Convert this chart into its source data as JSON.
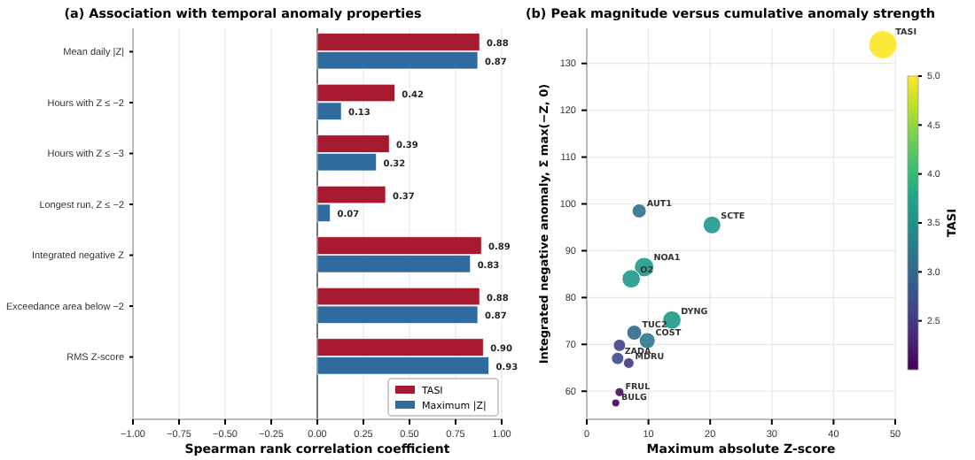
{
  "chart_data": [
    {
      "type": "bar",
      "orientation": "horizontal",
      "title": "(a) Association with temporal anomaly properties",
      "xlabel": "Spearman rank correlation coefficient",
      "categories": [
        "Mean daily |Z|",
        "Hours with Z ≤ −2",
        "Hours with Z ≤ −3",
        "Longest run, Z ≤ −2",
        "Integrated negative Z",
        "Exceedance area below −2",
        "RMS Z-score"
      ],
      "series": [
        {
          "name": "TASI",
          "color": "#a6192e",
          "values": [
            0.88,
            0.42,
            0.39,
            0.37,
            0.89,
            0.88,
            0.9
          ],
          "value_labels": [
            "0.88",
            "0.42",
            "0.39",
            "0.37",
            "0.89",
            "0.88",
            "0.90"
          ]
        },
        {
          "name": "Maximum |Z|",
          "color": "#2f6b9e",
          "values": [
            0.87,
            0.13,
            0.32,
            0.07,
            0.83,
            0.87,
            0.93
          ],
          "value_labels": [
            "0.87",
            "0.13",
            "0.32",
            "0.07",
            "0.83",
            "0.87",
            "0.93"
          ]
        }
      ],
      "xlim": [
        -1,
        1
      ],
      "xticks": [
        {
          "value": -1,
          "label": "−1.00"
        },
        {
          "value": -0.75,
          "label": "−0.75"
        },
        {
          "value": -0.5,
          "label": "−0.50"
        },
        {
          "value": -0.25,
          "label": "−0.25"
        },
        {
          "value": 0,
          "label": "0.00"
        },
        {
          "value": 0.25,
          "label": "0.25"
        },
        {
          "value": 0.5,
          "label": "0.50"
        },
        {
          "value": 0.75,
          "label": "0.75"
        },
        {
          "value": 1,
          "label": "1.00"
        }
      ],
      "grid": "x",
      "legend": "bottom right",
      "ref_lines": [
        {
          "axis": "x",
          "value": 0,
          "color": "#555555"
        }
      ]
    },
    {
      "type": "bubble",
      "title": "(b) Peak magnitude versus cumulative anomaly strength",
      "xlabel": "Maximum absolute Z-score",
      "ylabel": "Integrated negative anomaly, Σ max(−Z, 0)",
      "clabel": "TASI",
      "x": [
        48,
        8.5,
        20.3,
        9.3,
        7.2,
        13.8,
        7.7,
        9.8,
        5.3,
        5,
        6.8,
        5.3,
        4.7
      ],
      "values": [
        134,
        98.5,
        95.5,
        86.5,
        84,
        75.2,
        72.5,
        70.8,
        69.8,
        67,
        66,
        59.8,
        57.5
      ],
      "sizes": [
        1,
        0.25,
        0.39,
        0.47,
        0.42,
        0.42,
        0.28,
        0.32,
        0.19,
        0.19,
        0.14,
        0.1,
        0.08
      ],
      "cvalues": [
        5.0,
        3.1,
        3.6,
        3.6,
        3.6,
        3.6,
        3.0,
        3.2,
        2.6,
        2.7,
        2.5,
        2.1,
        2.0
      ],
      "clim": [
        2.0,
        5.0
      ],
      "cticks": [
        2.5,
        {
          "value": 3,
          "label": "3.0"
        },
        3.5,
        {
          "value": 4,
          "label": "4.0"
        },
        4.5,
        {
          "value": 5,
          "label": "5.0"
        }
      ],
      "xlim": [
        0,
        50
      ],
      "xticks": [
        0,
        10,
        20,
        30,
        40,
        50
      ],
      "ylim": [
        54,
        137.5
      ],
      "yticks": [
        60,
        70,
        80,
        90,
        100,
        110,
        120,
        130
      ],
      "grid": true,
      "annotations": [
        {
          "text": "TASI",
          "x": 48,
          "y": 134
        },
        {
          "text": "AUT1",
          "x": 8.5,
          "y": 98.5
        },
        {
          "text": "SCTE",
          "x": 20.3,
          "y": 95.5
        },
        {
          "text": "NOA1",
          "x": 9.3,
          "y": 86.5
        },
        {
          "text": "O2",
          "x": 7.2,
          "y": 84
        },
        {
          "text": "DYNG",
          "x": 13.8,
          "y": 75.2
        },
        {
          "text": "TUC2",
          "x": 7.7,
          "y": 72.5
        },
        {
          "text": "COST",
          "x": 9.8,
          "y": 70.8
        },
        {
          "text": "ZADA",
          "x": 5,
          "y": 67
        },
        {
          "text": "MDRU",
          "x": 6.8,
          "y": 66
        },
        {
          "text": "FRUL",
          "x": 5.3,
          "y": 59.8
        },
        {
          "text": "BULG",
          "x": 4.7,
          "y": 57.5
        }
      ]
    }
  ]
}
